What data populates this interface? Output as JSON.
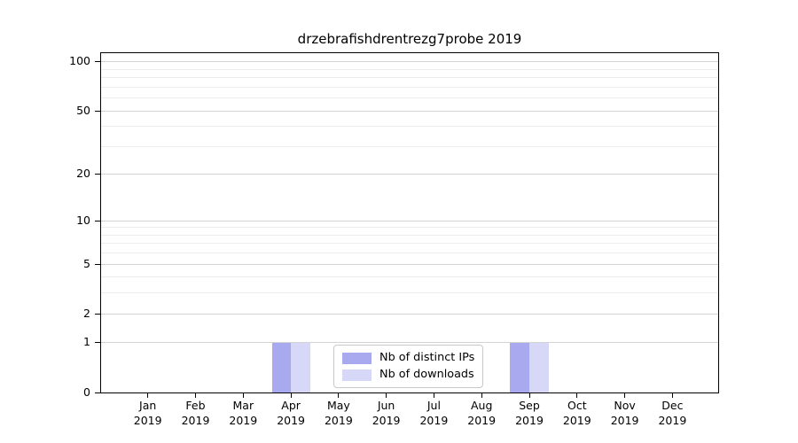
{
  "chart_data": {
    "type": "bar",
    "title": "drzebrafishdrentrezg7probe 2019",
    "categories": [
      "Jan",
      "Feb",
      "Mar",
      "Apr",
      "May",
      "Jun",
      "Jul",
      "Aug",
      "Sep",
      "Oct",
      "Nov",
      "Dec"
    ],
    "year_label": "2019",
    "series": [
      {
        "name": "Nb of distinct IPs",
        "color": "#a9a9f0",
        "values": [
          0,
          0,
          0,
          1,
          0,
          0,
          0,
          0,
          1,
          0,
          0,
          0
        ]
      },
      {
        "name": "Nb of downloads",
        "color": "#d7d7f8",
        "values": [
          0,
          0,
          0,
          1,
          0,
          0,
          0,
          0,
          1,
          0,
          0,
          0
        ]
      }
    ],
    "y_axis": {
      "scale": "log10(value+1)",
      "major_ticks": [
        0,
        1,
        2,
        5,
        10,
        20,
        50,
        100
      ],
      "minor_gridlines": [
        3,
        4,
        6,
        7,
        8,
        9,
        30,
        40,
        60,
        70,
        80,
        90
      ],
      "range_top": 113
    },
    "xlabel": "",
    "ylabel": "",
    "grid": "horizontal",
    "legend_position": "lower center",
    "colors": {
      "major_grid": "#d3d3d3",
      "minor_grid": "#ececec",
      "axis": "#000000",
      "background": "#ffffff",
      "legend_border": "#c9c9c9"
    }
  }
}
